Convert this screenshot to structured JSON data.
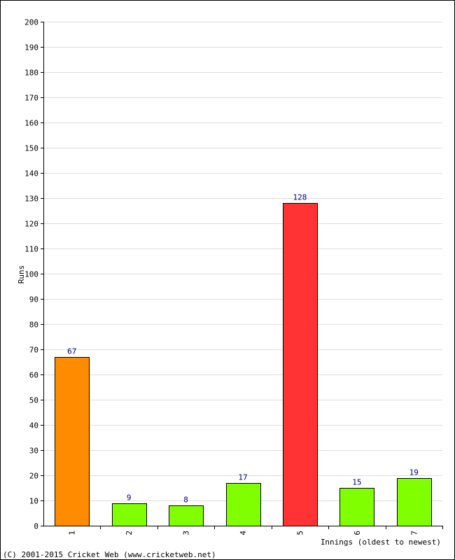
{
  "chart_data": {
    "type": "bar",
    "categories": [
      "1",
      "2",
      "3",
      "4",
      "5",
      "6",
      "7"
    ],
    "values": [
      67,
      9,
      8,
      17,
      128,
      15,
      19
    ],
    "bar_colors": [
      "#ff8c00",
      "#80ff00",
      "#80ff00",
      "#80ff00",
      "#ff3333",
      "#80ff00",
      "#80ff00"
    ],
    "data_labels": [
      "67",
      "9",
      "8",
      "17",
      "128",
      "15",
      "19"
    ],
    "title": "",
    "xlabel": "Innings (oldest to newest)",
    "ylabel": "Runs",
    "ylim": [
      0,
      200
    ],
    "yticks": [
      0,
      10,
      20,
      30,
      40,
      50,
      60,
      70,
      80,
      90,
      100,
      110,
      120,
      130,
      140,
      150,
      160,
      170,
      180,
      190,
      200
    ],
    "grid": true,
    "legend": "none"
  },
  "footer": {
    "copyright": "(C) 2001-2015 Cricket Web (www.cricketweb.net)"
  },
  "colors": {
    "grid": "#dddddd",
    "axis": "#000000",
    "value_label": "#000080"
  }
}
